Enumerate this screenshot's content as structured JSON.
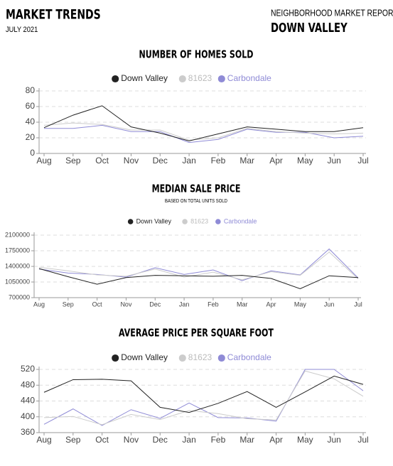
{
  "header": {
    "title": "MARKET TRENDS",
    "date": "JULY 2021",
    "report": "NEIGHBORHOOD MARKET REPORT",
    "area": "DOWN VALLEY"
  },
  "chart_data": [
    {
      "type": "line",
      "title": "NUMBER OF HOMES SOLD",
      "categories": [
        "Aug",
        "Sep",
        "Oct",
        "Nov",
        "Dec",
        "Jan",
        "Feb",
        "Mar",
        "Apr",
        "May",
        "Jun",
        "Jul"
      ],
      "series": [
        {
          "name": "Down Valley",
          "color": "#222222",
          "values": [
            33,
            49,
            61,
            34,
            26,
            16,
            25,
            34,
            31,
            28,
            28,
            33
          ]
        },
        {
          "name": "81623",
          "color": "#cccccc",
          "values": [
            36,
            39,
            37,
            30,
            30,
            17,
            20,
            32,
            28,
            26,
            25,
            26
          ]
        },
        {
          "name": "Carbondale",
          "color": "#8f8bd6",
          "values": [
            32,
            32,
            36,
            28,
            28,
            14,
            18,
            31,
            27,
            27,
            20,
            22
          ]
        }
      ],
      "ylim": [
        0,
        80
      ],
      "yticks": [
        0,
        20,
        40,
        60,
        80
      ],
      "grid": true
    },
    {
      "type": "line",
      "title": "MEDIAN SALE PRICE",
      "subtitle": "BASED ON TOTAL UNITS SOLD",
      "categories": [
        "Aug",
        "Sep",
        "Oct",
        "Nov",
        "Dec",
        "Jan",
        "Feb",
        "Mar",
        "Apr",
        "May",
        "Jun",
        "Jul"
      ],
      "series": [
        {
          "name": "Down Valley",
          "color": "#222222",
          "values": [
            1350000,
            1170000,
            1000000,
            1150000,
            1200000,
            1190000,
            1180000,
            1200000,
            1130000,
            900000,
            1190000,
            1150000
          ]
        },
        {
          "name": "81623",
          "color": "#cccccc",
          "values": [
            1380000,
            1300000,
            1210000,
            1180000,
            1340000,
            1160000,
            1270000,
            1100000,
            1280000,
            1200000,
            1720000,
            1120000
          ]
        },
        {
          "name": "Carbondale",
          "color": "#8f8bd6",
          "values": [
            1340000,
            1250000,
            1220000,
            1160000,
            1370000,
            1220000,
            1320000,
            1080000,
            1300000,
            1210000,
            1790000,
            1140000
          ]
        }
      ],
      "ylim": [
        700000,
        2100000
      ],
      "yticks": [
        700000,
        1050000,
        1400000,
        1750000,
        2100000
      ],
      "grid": true
    },
    {
      "type": "line",
      "title": "AVERAGE PRICE PER SQUARE FOOT",
      "categories": [
        "Aug",
        "Sep",
        "Oct",
        "Nov",
        "Dec",
        "Jan",
        "Feb",
        "Mar",
        "Apr",
        "May",
        "Jun",
        "Jul"
      ],
      "series": [
        {
          "name": "Down Valley",
          "color": "#222222",
          "values": [
            462,
            494,
            495,
            491,
            424,
            411,
            434,
            464,
            424,
            463,
            503,
            482
          ]
        },
        {
          "name": "81623",
          "color": "#cccccc",
          "values": [
            398,
            401,
            380,
            406,
            393,
            416,
            408,
            395,
            392,
            516,
            496,
            452
          ]
        },
        {
          "name": "Carbondale",
          "color": "#8f8bd6",
          "values": [
            381,
            420,
            378,
            418,
            396,
            435,
            398,
            397,
            389,
            520,
            520,
            466
          ]
        }
      ],
      "ylim": [
        360,
        520
      ],
      "yticks": [
        360,
        400,
        440,
        480,
        520
      ],
      "grid": true
    }
  ]
}
